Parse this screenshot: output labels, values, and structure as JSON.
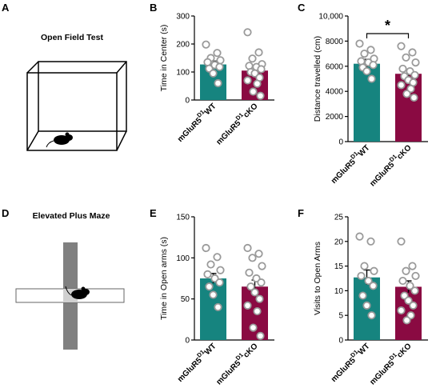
{
  "colors": {
    "wt": "#16847f",
    "cko": "#8a0a42",
    "point": "#9a9a9a"
  },
  "panels": {
    "A": {
      "letter": "A",
      "title": "Open Field Test"
    },
    "D": {
      "letter": "D",
      "title": "Elevated Plus Maze"
    }
  },
  "groups": [
    {
      "base": "mGluR5",
      "sup": "D1",
      "suffix": "WT"
    },
    {
      "base": "mGluR5",
      "sup": "D1",
      "suffix": "cKO"
    }
  ],
  "chart_data": [
    {
      "id": "B",
      "letter": "B",
      "type": "bar",
      "ylabel": "Time in Center (s)",
      "ylim": [
        0,
        300
      ],
      "yticks": [
        0,
        100,
        200,
        300
      ],
      "yticklabels": [
        "0",
        "100",
        "200",
        "300"
      ],
      "categories": [
        "mGluR5 D1 WT",
        "mGluR5 D1 cKO"
      ],
      "values": [
        127,
        105
      ],
      "sem": [
        12,
        14
      ],
      "points": [
        [
          198,
          168,
          150,
          142,
          135,
          125,
          118,
          112,
          95,
          60
        ],
        [
          242,
          170,
          148,
          128,
          122,
          118,
          110,
          100,
          95,
          80,
          70,
          58,
          30,
          15
        ]
      ],
      "significance": null
    },
    {
      "id": "C",
      "letter": "C",
      "type": "bar",
      "ylabel": "Distance travelled (cm)",
      "ylim": [
        0,
        10000
      ],
      "yticks": [
        0,
        2000,
        4000,
        6000,
        8000,
        10000
      ],
      "yticklabels": [
        "0",
        "2000",
        "4000",
        "6000",
        "8000",
        "10,000"
      ],
      "categories": [
        "mGluR5 D1 WT",
        "mGluR5 D1 cKO"
      ],
      "values": [
        6200,
        5400
      ],
      "sem": [
        350,
        300
      ],
      "points": [
        [
          7800,
          7300,
          7000,
          6600,
          6400,
          6300,
          6100,
          5900,
          5600,
          5000
        ],
        [
          7600,
          7100,
          6700,
          6300,
          5800,
          5600,
          5300,
          5200,
          4900,
          4700,
          4500,
          4200,
          3800,
          3500
        ]
      ],
      "significance": {
        "label": "*",
        "y": 8600
      }
    },
    {
      "id": "E",
      "letter": "E",
      "type": "bar",
      "ylabel": "Time in Open arms (s)",
      "ylim": [
        0,
        150
      ],
      "yticks": [
        0,
        50,
        100,
        150
      ],
      "yticklabels": [
        "0",
        "50",
        "100",
        "150"
      ],
      "categories": [
        "mGluR5 D1 WT",
        "mGluR5 D1 cKO"
      ],
      "values": [
        75,
        65
      ],
      "sem": [
        6,
        8
      ],
      "points": [
        [
          112,
          101,
          92,
          85,
          80,
          75,
          70,
          65,
          55,
          40
        ],
        [
          112,
          105,
          100,
          90,
          82,
          75,
          70,
          65,
          58,
          50,
          42,
          35,
          15,
          5
        ]
      ],
      "significance": null
    },
    {
      "id": "F",
      "letter": "F",
      "type": "bar",
      "ylabel": "Visits to Open Arms",
      "ylim": [
        0,
        25
      ],
      "yticks": [
        0,
        5,
        10,
        15,
        20,
        25
      ],
      "yticklabels": [
        "0",
        "5",
        "10",
        "15",
        "20",
        "25"
      ],
      "categories": [
        "mGluR5 D1 WT",
        "mGluR5 D1 cKO"
      ],
      "values": [
        12.7,
        10.8
      ],
      "sem": [
        1.5,
        1.2
      ],
      "points": [
        [
          21,
          20,
          15,
          14,
          13,
          12,
          11,
          9,
          7,
          5
        ],
        [
          20,
          15,
          14,
          13,
          12,
          11,
          10,
          9,
          8,
          7,
          6,
          5,
          4
        ]
      ],
      "significance": null
    }
  ]
}
